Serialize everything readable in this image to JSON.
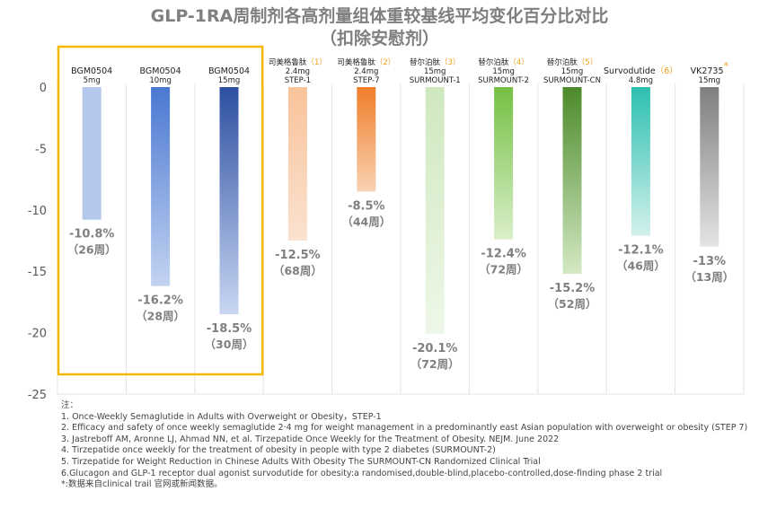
{
  "title": {
    "line1": "GLP-1RA周制剂各高剂量组体重较基线平均变化百分比对比",
    "line2": "（扣除安慰剂）"
  },
  "chart_data": {
    "type": "bar",
    "title": "GLP-1RA周制剂各高剂量组体重较基线平均变化百分比对比（扣除安慰剂）",
    "ylim": [
      -25,
      0
    ],
    "yticks": [
      "0",
      "-5",
      "-10",
      "-15",
      "-20",
      "-25"
    ],
    "grid": true,
    "highlight_box": "around first three bars (BGM0504)",
    "bars": [
      {
        "drug": "BGM0504",
        "ref": "",
        "dose": "5mg",
        "trial": "",
        "value": -10.8,
        "value_label": "-10.8%",
        "weeks_label": "（26周）",
        "color_top": "#b4c8ec",
        "color_bottom": "#b4c8ec"
      },
      {
        "drug": "BGM0504",
        "ref": "",
        "dose": "10mg",
        "trial": "",
        "value": -16.2,
        "value_label": "-16.2%",
        "weeks_label": "（28周）",
        "color_top": "#4a78d2",
        "color_bottom": "#c3d3f1"
      },
      {
        "drug": "BGM0504",
        "ref": "",
        "dose": "15mg",
        "trial": "",
        "value": -18.5,
        "value_label": "-18.5%",
        "weeks_label": "（30周）",
        "color_top": "#2c4fa0",
        "color_bottom": "#c8d6f2"
      },
      {
        "drug": "司美格鲁肽",
        "ref": "（1）",
        "dose": "2.4mg",
        "trial": "STEP-1",
        "value": -12.5,
        "value_label": "-12.5%",
        "weeks_label": "（68周）",
        "color_top": "#f9c39b",
        "color_bottom": "#fbe2cf"
      },
      {
        "drug": "司美格鲁肽",
        "ref": "（2）",
        "dose": "2.4mg",
        "trial": "STEP-7",
        "value": -8.5,
        "value_label": "-8.5%",
        "weeks_label": "（44周）",
        "color_top": "#ef7e2a",
        "color_bottom": "#f9d2b2"
      },
      {
        "drug": "替尔泊肽",
        "ref": "（3）",
        "dose": "15mg",
        "trial": "SURMOUNT-1",
        "value": -20.1,
        "value_label": "-20.1%",
        "weeks_label": "（72周）",
        "color_top": "#cfe8bf",
        "color_bottom": "#eef7e8"
      },
      {
        "drug": "替尔泊肽",
        "ref": "（4）",
        "dose": "15mg",
        "trial": "SURMOUNT-2",
        "value": -12.4,
        "value_label": "-12.4%",
        "weeks_label": "（72周）",
        "color_top": "#74c043",
        "color_bottom": "#d9efc9"
      },
      {
        "drug": "替尔泊肽",
        "ref": "（5）",
        "dose": "15mg",
        "trial": "SURMOUNT-CN",
        "value": -15.2,
        "value_label": "-15.2%",
        "weeks_label": "（52周）",
        "color_top": "#4c8a2a",
        "color_bottom": "#d3e8c3"
      },
      {
        "drug": "Survodutide",
        "ref": "（6）",
        "dose": "4.8mg",
        "trial": "",
        "value": -12.1,
        "value_label": "-12.1%",
        "weeks_label": "（46周）",
        "color_top": "#2bbfb0",
        "color_bottom": "#d2f1ec"
      },
      {
        "drug": "VK2735",
        "ref": "*",
        "dose": "15mg",
        "trial": "",
        "value": -13,
        "value_label": "-13%",
        "weeks_label": "（13周）",
        "color_top": "#7f7f7f",
        "color_bottom": "#e4e4e4"
      }
    ]
  },
  "colors": {
    "title": "#7f7f7f",
    "ref_marker": "#f0a21b",
    "highlight_box": "#f5b800",
    "grid": "#e3e3e3",
    "value_label": "#7f7f7f"
  },
  "notes": {
    "header": "注：",
    "lines": [
      "1. Once-Weekly Semaglutide in Adults with Overweight or Obesity，STEP-1",
      "2. Efficacy and safety of once weekly semaglutide 2·4 mg for weight management in a predominantly east Asian population with overweight or obesity (STEP 7)",
      "3. Jastreboff AM, Aronne LJ, Ahmad NN, et al. Tirzepatide Once Weekly for the Treatment of Obesity. NEJM. June 2022",
      "4. Tirzepatide once weekly for the treatment of obesity in people with type 2 diabetes (SURMOUNT-2)",
      "5. Tirzepatide for Weight Reduction in Chinese Adults With Obesity The SURMOUNT-CN Randomized Clinical Trial",
      "6.Glucagon and GLP-1 receptor dual agonist survodutide for obesity:a randomised,double-blind,placebo-controlled,dose-finding phase 2 trial",
      "*:数据来自clinical trail 官网或新闻数据。"
    ]
  }
}
